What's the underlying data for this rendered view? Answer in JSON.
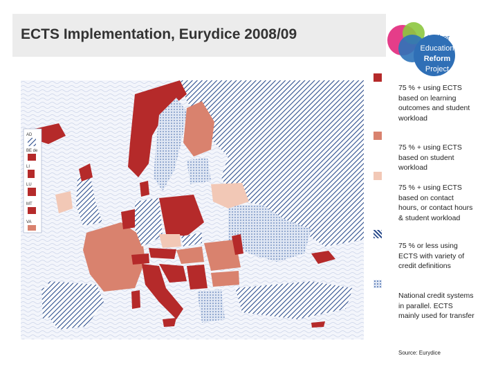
{
  "title": "ECTS Implementation, Eurydice 2008/09",
  "logo": {
    "lines": [
      "Higher",
      "Education",
      "Reform",
      "Project"
    ]
  },
  "map": {
    "insets": [
      "AD",
      "BE de",
      "LI",
      "LU",
      "MT",
      "VA"
    ]
  },
  "legend": [
    {
      "text": "75 % + using ECTS based on learning outcomes and student workload",
      "color": "#b52a2a",
      "pattern": "solid"
    },
    {
      "text": "75 % + using ECTS based on student workload",
      "color": "#d9826e",
      "pattern": "solid"
    },
    {
      "text": "75 % + using ECTS based on contact hours, or contact hours & student workload",
      "color": "#f2c8b6",
      "pattern": "solid"
    },
    {
      "text": "75 % or less using ECTS with variety of credit definitions",
      "color": "#2b4c8c",
      "pattern": "hatch"
    },
    {
      "text": "National credit systems in parallel. ECTS mainly used for transfer",
      "color": "#7f9ccc",
      "pattern": "dots"
    }
  ],
  "source": "Source: Eurydice",
  "colors": {
    "learning_outcomes": "#b52a2a",
    "workload": "#d9826e",
    "contact_hours": "#f2c8b6",
    "hatch": "#2b4c8c",
    "dots": "#7f9ccc",
    "sea": "#eef1f8"
  }
}
